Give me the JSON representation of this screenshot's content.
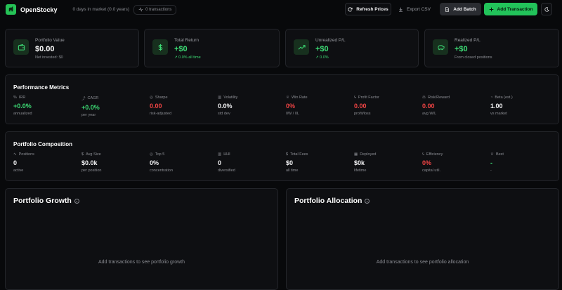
{
  "header": {
    "app_name": "OpenStocky",
    "market_days": "0 days in market (0.0 years)",
    "transactions_pill": "0 transactions",
    "refresh_label": "Refresh Prices",
    "export_label": "Export CSV",
    "batch_label": "Add Batch",
    "add_label": "Add Transaction"
  },
  "summary": [
    {
      "label": "Portfolio Value",
      "value": "$0.00",
      "sub": "Net invested: $0",
      "icon": "wallet-icon"
    },
    {
      "label": "Total Return",
      "value": "+$0",
      "sub": "0.0% all time",
      "icon": "dollar-icon"
    },
    {
      "label": "Unrealized P/L",
      "value": "+$0",
      "sub": "0.0%",
      "icon": "trending-up-icon"
    },
    {
      "label": "Realized P/L",
      "value": "+$0",
      "sub": "From closed positions",
      "icon": "piggy-bank-icon"
    }
  ],
  "performance": {
    "title": "Performance Metrics",
    "metrics": [
      {
        "label": "IRR",
        "value": "+0.0%",
        "sub": "annualized",
        "icon": "percent-icon"
      },
      {
        "label": "CAGR",
        "value": "+0.0%",
        "sub": "per year",
        "icon": "trend-icon"
      },
      {
        "label": "Sharpe",
        "value": "0.00",
        "sub": "risk-adjusted",
        "icon": "target-icon"
      },
      {
        "label": "Volatility",
        "value": "0.0%",
        "sub": "std dev",
        "icon": "bar-chart-icon"
      },
      {
        "label": "Win Rate",
        "value": "0%",
        "sub": "0W / 0L",
        "icon": "trophy-icon"
      },
      {
        "label": "Profit Factor",
        "value": "0.00",
        "sub": "profit/loss",
        "icon": "zap-icon"
      },
      {
        "label": "Risk/Reward",
        "value": "0.00",
        "sub": "avg W/L",
        "icon": "scale-icon"
      },
      {
        "label": "Beta (est.)",
        "value": "1.00",
        "sub": "vs market",
        "icon": "gauge-icon"
      }
    ]
  },
  "composition": {
    "title": "Portfolio Composition",
    "metrics": [
      {
        "label": "Positions",
        "value": "0",
        "sub": "active",
        "icon": "activity-icon"
      },
      {
        "label": "Avg Size",
        "value": "$0.0k",
        "sub": "per position",
        "icon": "dollar-icon"
      },
      {
        "label": "Top 5",
        "value": "0%",
        "sub": "concentration",
        "icon": "target-icon"
      },
      {
        "label": "HHI",
        "value": "0",
        "sub": "diversified",
        "icon": "bar-chart-icon"
      },
      {
        "label": "Total Fees",
        "value": "$0",
        "sub": "all time",
        "icon": "dollar-icon"
      },
      {
        "label": "Deployed",
        "value": "$0k",
        "sub": "lifetime",
        "icon": "calendar-icon"
      },
      {
        "label": "Efficiency",
        "value": "0%",
        "sub": "capital util.",
        "icon": "zap-icon"
      },
      {
        "label": "Best",
        "value": "-",
        "sub": "-",
        "icon": "award-icon"
      }
    ]
  },
  "growth": {
    "title": "Portfolio Growth",
    "empty": "Add transactions to see portfolio growth"
  },
  "allocation": {
    "title": "Portfolio Allocation",
    "empty": "Add transactions to see portfolio allocation"
  },
  "colors": {
    "accent": "#22c35a",
    "positive": "#3ddc75",
    "negative": "#ef4444",
    "background": "#08090b",
    "card": "#0e0f12"
  }
}
